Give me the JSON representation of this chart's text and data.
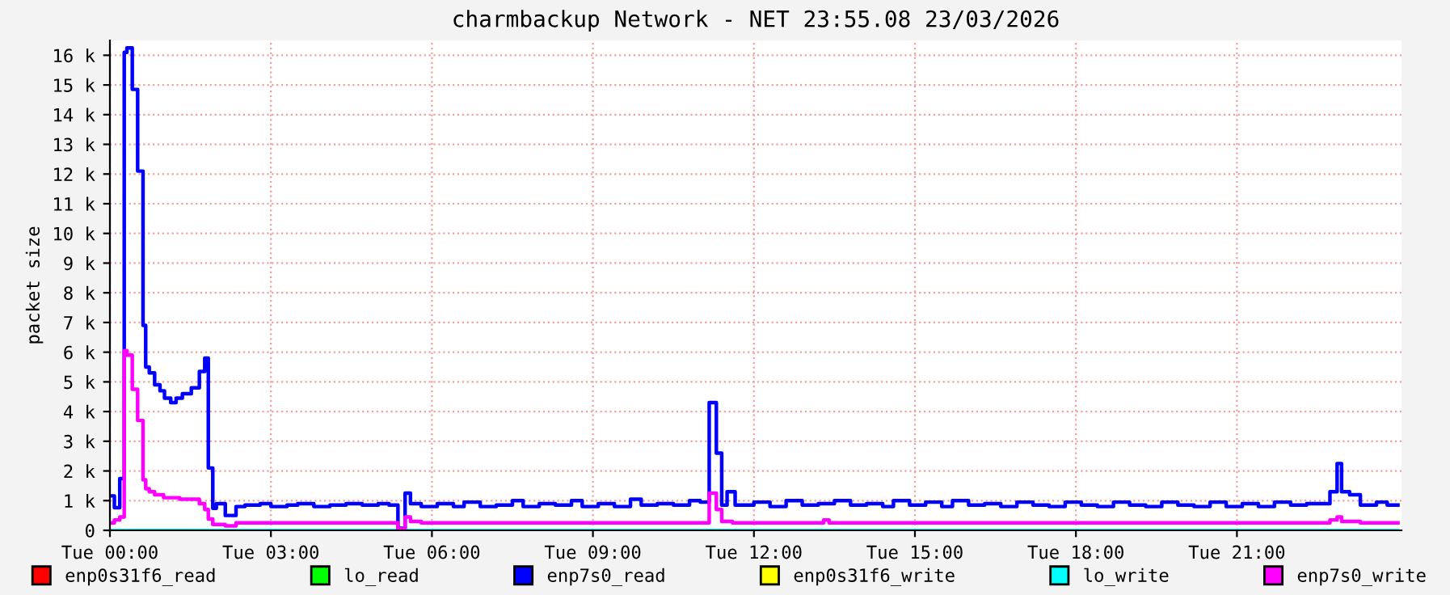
{
  "chart_data": {
    "type": "step",
    "title": "charmbackup Network - NET 23:55.08 23/03/2026",
    "ylabel": "packet size",
    "xlim": [
      "2026-03-24T00:00",
      "2026-03-25T00:04"
    ],
    "ylim": [
      0,
      16.5
    ],
    "xticks": [
      {
        "value": "2026-03-24T00:00",
        "label": "Tue 00:00"
      },
      {
        "value": "2026-03-24T03:00",
        "label": "Tue 03:00"
      },
      {
        "value": "2026-03-24T06:00",
        "label": "Tue 06:00"
      },
      {
        "value": "2026-03-24T09:00",
        "label": "Tue 09:00"
      },
      {
        "value": "2026-03-24T12:00",
        "label": "Tue 12:00"
      },
      {
        "value": "2026-03-24T15:00",
        "label": "Tue 15:00"
      },
      {
        "value": "2026-03-24T18:00",
        "label": "Tue 18:00"
      },
      {
        "value": "2026-03-24T21:00",
        "label": "Tue 21:00"
      }
    ],
    "yticks": [
      0,
      {
        "value": 1,
        "label": "1 k"
      },
      {
        "value": 2,
        "label": "2 k"
      },
      {
        "value": 3,
        "label": "3 k"
      },
      {
        "value": 4,
        "label": "4 k"
      },
      {
        "value": 5,
        "label": "5 k"
      },
      {
        "value": 6,
        "label": "6 k"
      },
      {
        "value": 7,
        "label": "7 k"
      },
      {
        "value": 8,
        "label": "8 k"
      },
      {
        "value": 9,
        "label": "9 k"
      },
      {
        "value": 10,
        "label": "10 k"
      },
      {
        "value": 11,
        "label": "11 k"
      },
      {
        "value": 12,
        "label": "12 k"
      },
      {
        "value": 13,
        "label": "13 k"
      },
      {
        "value": 14,
        "label": "14 k"
      },
      {
        "value": 15,
        "label": "15 k"
      },
      {
        "value": 16,
        "label": "16 k"
      }
    ],
    "grid": true,
    "legend": "bottom",
    "series": [
      {
        "name": "enp0s31f6_read",
        "color": "#ff0000"
      },
      {
        "name": "lo_read",
        "color": "#00ff00"
      },
      {
        "name": "enp7s0_read",
        "color": "#0000ff",
        "x": [
          "2026-03-24T00:00",
          "2026-03-24T00:05",
          "2026-03-24T00:11",
          "2026-03-24T00:16",
          "2026-03-24T00:19",
          "2026-03-24T00:25",
          "2026-03-24T00:31",
          "2026-03-24T00:37",
          "2026-03-24T00:40",
          "2026-03-24T00:44",
          "2026-03-24T00:50",
          "2026-03-24T00:56",
          "2026-03-24T01:01",
          "2026-03-24T01:08",
          "2026-03-24T01:14",
          "2026-03-24T01:21",
          "2026-03-24T01:31",
          "2026-03-24T01:40",
          "2026-03-24T01:46",
          "2026-03-24T01:50",
          "2026-03-24T01:55",
          "2026-03-24T01:59",
          "2026-03-24T02:09",
          "2026-03-24T02:21",
          "2026-03-24T02:31",
          "2026-03-24T02:48",
          "2026-03-24T03:00",
          "2026-03-24T03:18",
          "2026-03-24T03:30",
          "2026-03-24T03:48",
          "2026-03-24T04:06",
          "2026-03-24T04:24",
          "2026-03-24T04:42",
          "2026-03-24T05:00",
          "2026-03-24T05:12",
          "2026-03-24T05:22",
          "2026-03-24T05:30",
          "2026-03-24T05:36",
          "2026-03-24T05:48",
          "2026-03-24T06:06",
          "2026-03-24T06:24",
          "2026-03-24T06:36",
          "2026-03-24T06:54",
          "2026-03-24T07:12",
          "2026-03-24T07:30",
          "2026-03-24T07:42",
          "2026-03-24T08:00",
          "2026-03-24T08:18",
          "2026-03-24T08:36",
          "2026-03-24T08:48",
          "2026-03-24T09:06",
          "2026-03-24T09:24",
          "2026-03-24T09:42",
          "2026-03-24T09:54",
          "2026-03-24T10:12",
          "2026-03-24T10:30",
          "2026-03-24T10:48",
          "2026-03-24T11:00",
          "2026-03-24T11:10",
          "2026-03-24T11:18",
          "2026-03-24T11:24",
          "2026-03-24T11:30",
          "2026-03-24T11:39",
          "2026-03-24T12:00",
          "2026-03-24T12:18",
          "2026-03-24T12:36",
          "2026-03-24T12:54",
          "2026-03-24T13:12",
          "2026-03-24T13:30",
          "2026-03-24T13:48",
          "2026-03-24T14:06",
          "2026-03-24T14:24",
          "2026-03-24T14:36",
          "2026-03-24T14:54",
          "2026-03-24T15:12",
          "2026-03-24T15:30",
          "2026-03-24T15:42",
          "2026-03-24T16:00",
          "2026-03-24T16:18",
          "2026-03-24T16:36",
          "2026-03-24T16:54",
          "2026-03-24T17:12",
          "2026-03-24T17:30",
          "2026-03-24T17:48",
          "2026-03-24T18:06",
          "2026-03-24T18:24",
          "2026-03-24T18:42",
          "2026-03-24T19:00",
          "2026-03-24T19:18",
          "2026-03-24T19:36",
          "2026-03-24T19:54",
          "2026-03-24T20:12",
          "2026-03-24T20:30",
          "2026-03-24T20:48",
          "2026-03-24T21:06",
          "2026-03-24T21:24",
          "2026-03-24T21:42",
          "2026-03-24T22:00",
          "2026-03-24T22:18",
          "2026-03-24T22:36",
          "2026-03-24T22:44",
          "2026-03-24T22:52",
          "2026-03-24T22:57",
          "2026-03-24T23:06",
          "2026-03-24T23:18",
          "2026-03-24T23:36",
          "2026-03-24T23:48",
          "2026-03-25T00:00"
        ],
        "values": [
          1.16,
          0.76,
          1.74,
          16.1,
          16.25,
          14.85,
          12.1,
          6.9,
          5.5,
          5.3,
          4.9,
          4.7,
          4.45,
          4.3,
          4.45,
          4.6,
          4.8,
          5.35,
          5.8,
          2.1,
          0.74,
          0.9,
          0.5,
          0.8,
          0.85,
          0.9,
          0.8,
          0.85,
          0.9,
          0.8,
          0.85,
          0.9,
          0.85,
          0.9,
          0.85,
          0.07,
          1.25,
          0.9,
          0.8,
          0.9,
          0.8,
          0.95,
          0.8,
          0.85,
          1.0,
          0.8,
          0.9,
          0.85,
          1.0,
          0.8,
          0.9,
          0.8,
          1.05,
          0.85,
          0.9,
          0.85,
          1.0,
          0.95,
          4.3,
          2.6,
          0.85,
          1.3,
          0.85,
          0.95,
          0.8,
          1.0,
          0.85,
          0.9,
          1.0,
          0.85,
          0.9,
          0.8,
          1.0,
          0.85,
          0.95,
          0.8,
          1.0,
          0.85,
          0.9,
          0.8,
          0.95,
          0.85,
          0.8,
          0.95,
          0.85,
          0.8,
          0.95,
          0.85,
          0.8,
          0.95,
          0.85,
          0.8,
          0.95,
          0.8,
          0.9,
          0.8,
          0.95,
          0.85,
          0.9,
          0.9,
          1.3,
          2.25,
          1.3,
          1.2,
          0.85,
          0.95,
          0.85,
          0.85
        ]
      },
      {
        "name": "enp0s31f6_write",
        "color": "#ffff00"
      },
      {
        "name": "lo_write",
        "color": "#00ffff",
        "x": [
          "2026-03-24T00:00",
          "2026-03-25T00:00"
        ],
        "values": [
          0,
          0
        ]
      },
      {
        "name": "enp7s0_write",
        "color": "#ff00ff",
        "x": [
          "2026-03-24T00:00",
          "2026-03-24T00:05",
          "2026-03-24T00:11",
          "2026-03-24T00:16",
          "2026-03-24T00:19",
          "2026-03-24T00:25",
          "2026-03-24T00:31",
          "2026-03-24T00:37",
          "2026-03-24T00:40",
          "2026-03-24T00:44",
          "2026-03-24T00:50",
          "2026-03-24T01:00",
          "2026-03-24T01:18",
          "2026-03-24T01:36",
          "2026-03-24T01:40",
          "2026-03-24T01:46",
          "2026-03-24T01:50",
          "2026-03-24T01:55",
          "2026-03-24T02:09",
          "2026-03-24T02:21",
          "2026-03-24T03:30",
          "2026-03-24T05:22",
          "2026-03-24T05:30",
          "2026-03-24T05:36",
          "2026-03-24T05:48",
          "2026-03-24T11:10",
          "2026-03-24T11:18",
          "2026-03-24T11:24",
          "2026-03-24T11:36",
          "2026-03-24T13:18",
          "2026-03-24T13:24",
          "2026-03-24T22:44",
          "2026-03-24T22:52",
          "2026-03-24T22:57",
          "2026-03-24T23:18",
          "2026-03-25T00:00"
        ],
        "values": [
          0.25,
          0.35,
          0.45,
          6.05,
          5.9,
          4.75,
          3.7,
          1.7,
          1.4,
          1.3,
          1.2,
          1.1,
          1.05,
          1.05,
          0.9,
          0.7,
          0.38,
          0.2,
          0.15,
          0.25,
          0.25,
          0.05,
          0.45,
          0.3,
          0.25,
          1.25,
          0.7,
          0.3,
          0.25,
          0.35,
          0.25,
          0.35,
          0.45,
          0.3,
          0.25,
          0.25
        ]
      }
    ]
  }
}
